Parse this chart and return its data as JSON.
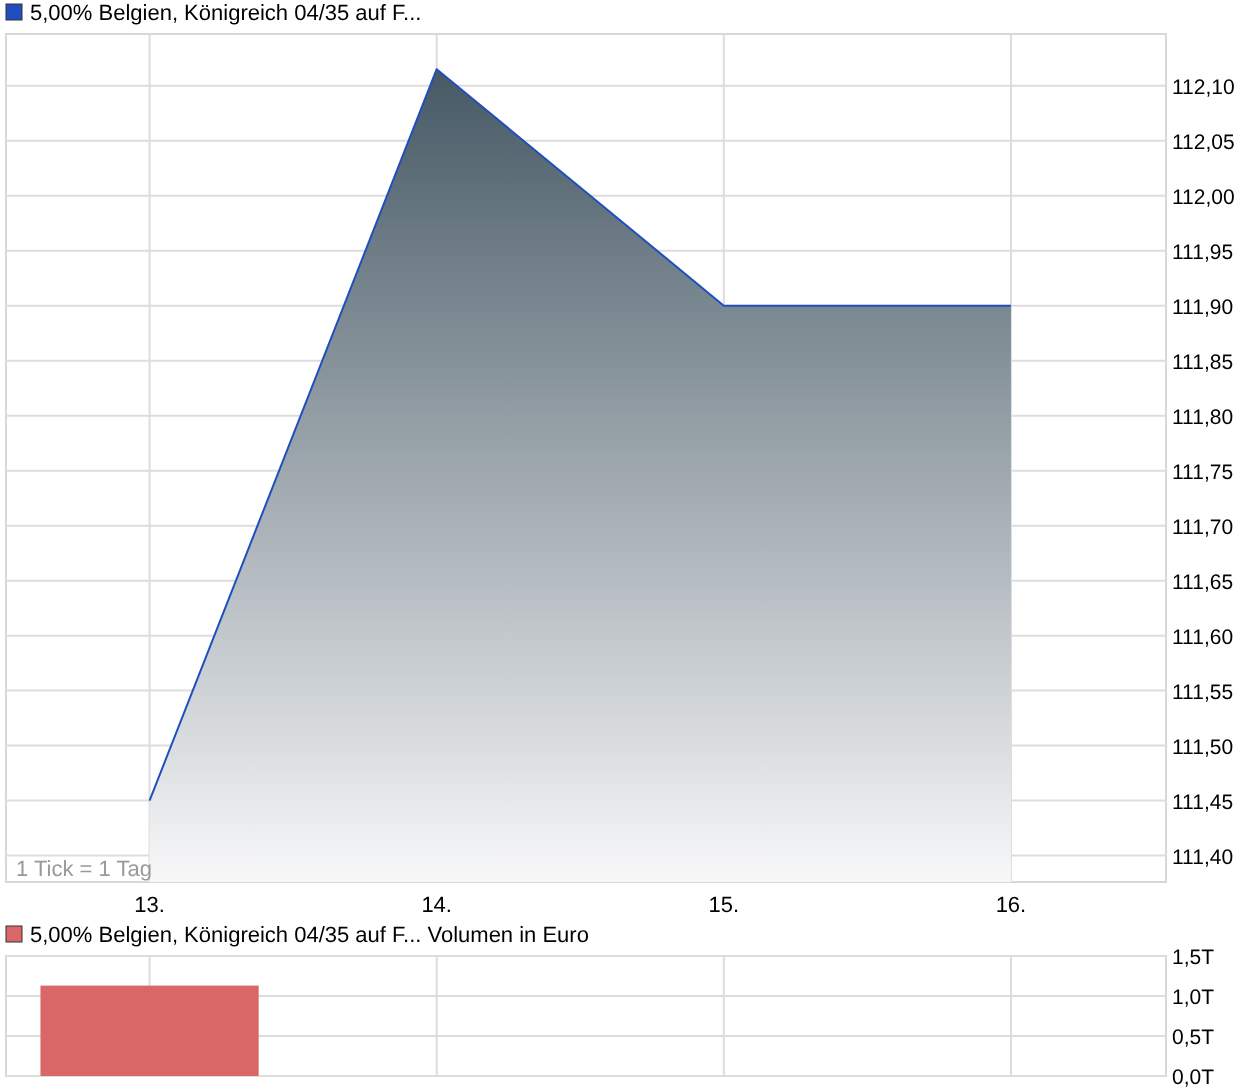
{
  "chart_data": [
    {
      "type": "area",
      "x": [
        13,
        14,
        15,
        16
      ],
      "series": [
        {
          "name": "5,00% Belgien, Königreich 04/35 auf F...",
          "color": "#1f4fbf",
          "values": [
            111.45,
            112.115,
            111.9,
            111.9
          ]
        }
      ],
      "xlim": [
        12.5,
        16.54
      ],
      "xticks": [
        {
          "value": 13,
          "label": "13."
        },
        {
          "value": 14,
          "label": "14."
        },
        {
          "value": 15,
          "label": "15."
        },
        {
          "value": 16,
          "label": "16."
        }
      ],
      "ylim": [
        111.376,
        112.147
      ],
      "yticks": [
        {
          "value": 111.4,
          "label": "111,40"
        },
        {
          "value": 111.45,
          "label": "111,45"
        },
        {
          "value": 111.5,
          "label": "111,50"
        },
        {
          "value": 111.55,
          "label": "111,55"
        },
        {
          "value": 111.6,
          "label": "111,60"
        },
        {
          "value": 111.65,
          "label": "111,65"
        },
        {
          "value": 111.7,
          "label": "111,70"
        },
        {
          "value": 111.75,
          "label": "111,75"
        },
        {
          "value": 111.8,
          "label": "111,80"
        },
        {
          "value": 111.85,
          "label": "111,85"
        },
        {
          "value": 111.9,
          "label": "111,90"
        },
        {
          "value": 111.95,
          "label": "111,95"
        },
        {
          "value": 112.0,
          "label": "112,00"
        },
        {
          "value": 112.05,
          "label": "112,05"
        },
        {
          "value": 112.1,
          "label": "112,10"
        }
      ],
      "annotations": [
        "1 Tick = 1 Tag"
      ],
      "grid": true,
      "legend": "top left"
    },
    {
      "type": "bar",
      "x": [
        13
      ],
      "series": [
        {
          "name": "5,00% Belgien, Königreich 04/35 auf F... Volumen in Euro",
          "color": "#d96767",
          "values": [
            1.13
          ]
        }
      ],
      "xlim": [
        12.5,
        16.54
      ],
      "xticks": [
        13,
        14,
        15,
        16
      ],
      "ylim": [
        0,
        1.5
      ],
      "yticks": [
        {
          "value": 0,
          "label": "0,0T"
        },
        {
          "value": 0.5,
          "label": "0,5T"
        },
        {
          "value": 1.0,
          "label": "1,0T"
        },
        {
          "value": 1.5,
          "label": "1,5T"
        }
      ],
      "tick_labels": "y",
      "grid": true,
      "legend": "top left"
    }
  ]
}
